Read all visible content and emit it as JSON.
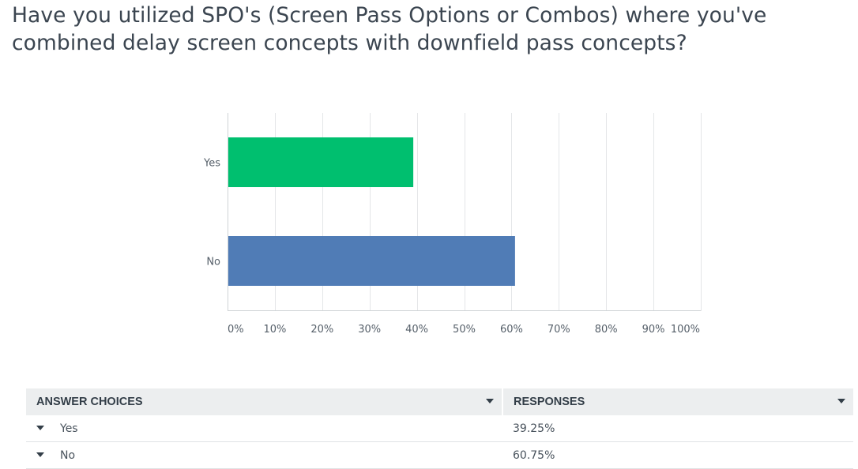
{
  "question": {
    "title": "Have you utilized SPO's (Screen Pass Options or Combos) where you've combined delay screen concepts with downfield pass concepts?"
  },
  "chart_data": {
    "type": "bar",
    "orientation": "horizontal",
    "categories": [
      "Yes",
      "No"
    ],
    "values": [
      39.25,
      60.75
    ],
    "colors": [
      "#00bf6f",
      "#507cb6"
    ],
    "xlim": [
      0,
      100
    ],
    "x_ticks": [
      "0%",
      "10%",
      "20%",
      "30%",
      "40%",
      "50%",
      "60%",
      "70%",
      "80%",
      "90%",
      "100%"
    ],
    "grid": true,
    "title": "",
    "xlabel": "",
    "ylabel": ""
  },
  "table": {
    "headers": [
      "ANSWER CHOICES",
      "RESPONSES"
    ],
    "rows": [
      {
        "choice": "Yes",
        "response": "39.25%"
      },
      {
        "choice": "No",
        "response": "60.75%"
      }
    ]
  }
}
